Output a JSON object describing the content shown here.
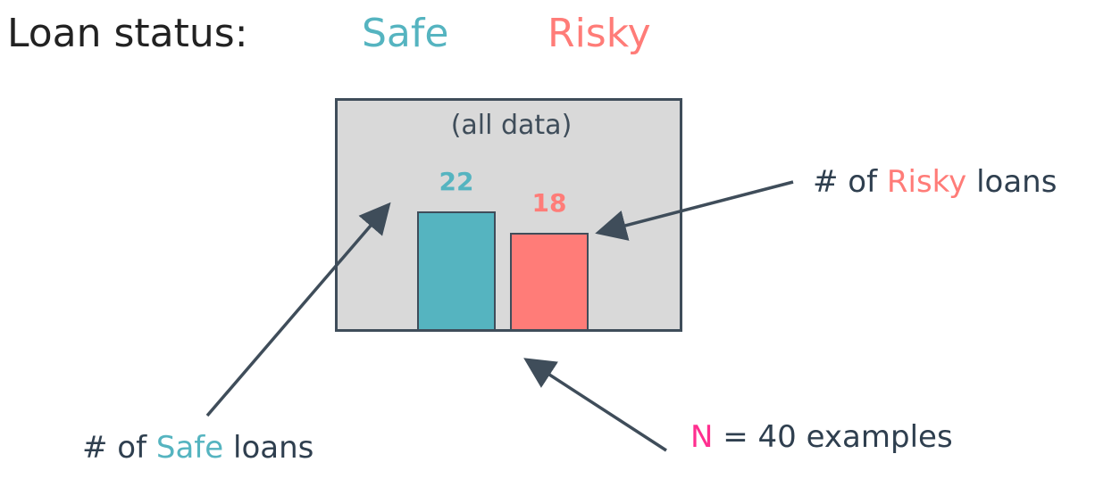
{
  "colors": {
    "safe": "#55b4c0",
    "risky": "#ff7c78",
    "n_highlight": "#ff2f8f",
    "dark": "#3f4d5a",
    "box_fill": "#d9d9d9"
  },
  "legend": {
    "label": "Loan status:",
    "safe": "Safe",
    "risky": "Risky"
  },
  "node": {
    "title": "(all data)"
  },
  "chart_data": {
    "type": "bar",
    "categories": [
      "Safe",
      "Risky"
    ],
    "values": [
      22,
      18
    ],
    "value_labels": [
      "22",
      "18"
    ]
  },
  "annotations": {
    "risky": {
      "prefix": "# of ",
      "highlight": "Risky",
      "suffix": " loans"
    },
    "safe": {
      "prefix": "# of ",
      "highlight": "Safe",
      "suffix": " loans"
    },
    "n": {
      "highlight": "N",
      "suffix": " = 40 examples"
    }
  }
}
